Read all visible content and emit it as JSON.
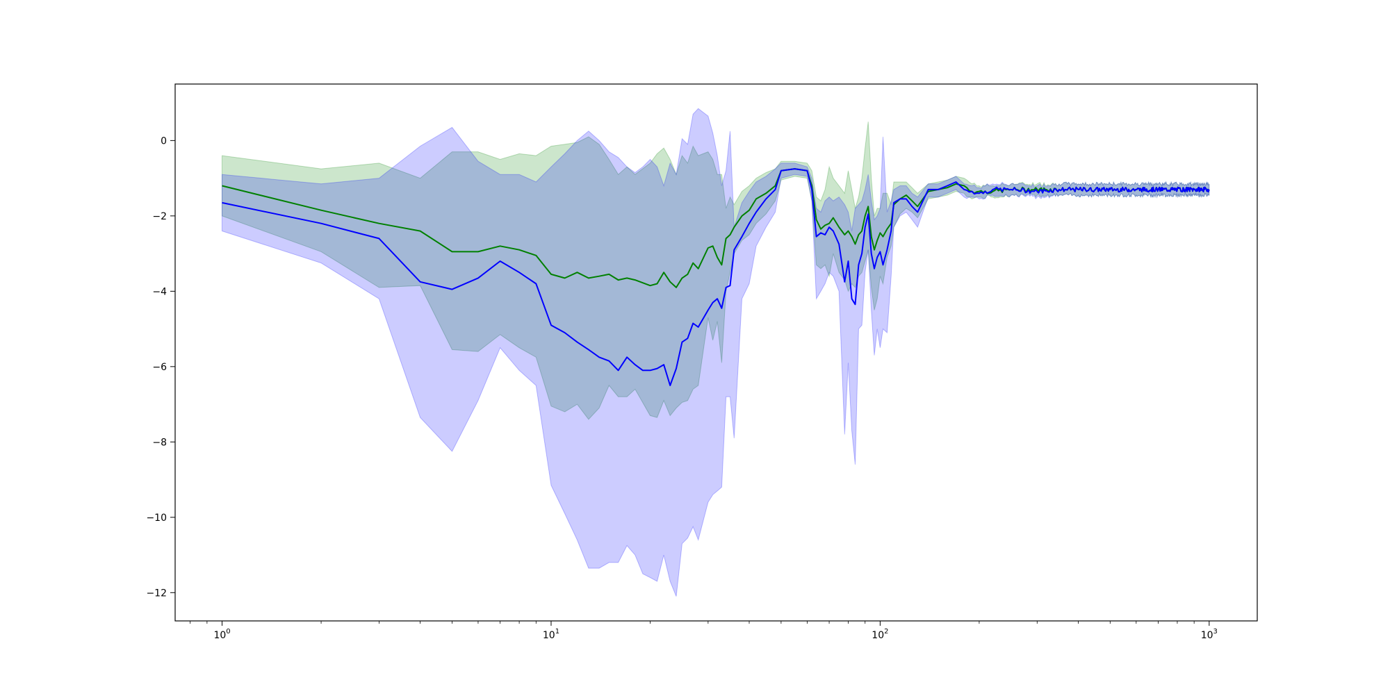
{
  "chart_data": {
    "type": "line",
    "title": "",
    "xlabel": "",
    "ylabel": "",
    "xscale": "log",
    "xlim": [
      0.72,
      1400
    ],
    "ylim": [
      -12.75,
      1.5
    ],
    "grid": false,
    "x_ticks": [
      {
        "value": 1,
        "base": "10",
        "exp": "0"
      },
      {
        "value": 10,
        "base": "10",
        "exp": "1"
      },
      {
        "value": 100,
        "base": "10",
        "exp": "2"
      },
      {
        "value": 1000,
        "base": "10",
        "exp": "3"
      }
    ],
    "y_ticks": [
      {
        "value": 0,
        "label": "0"
      },
      {
        "value": -2,
        "label": "−2"
      },
      {
        "value": -4,
        "label": "−4"
      },
      {
        "value": -6,
        "label": "−6"
      },
      {
        "value": -8,
        "label": "−8"
      },
      {
        "value": -10,
        "label": "−10"
      },
      {
        "value": -12,
        "label": "−12"
      }
    ],
    "series": [
      {
        "color": "#008000",
        "band_color": "#008000",
        "band_opacity": 0.2,
        "x": [
          1,
          2,
          3,
          4,
          5,
          6,
          7,
          8,
          9,
          10,
          11,
          12,
          13,
          14,
          15,
          16,
          17,
          18,
          20,
          21,
          22,
          23,
          24,
          25,
          26,
          27,
          28,
          30,
          31,
          32,
          33,
          34,
          35,
          36,
          38,
          40,
          42,
          45,
          48,
          50,
          55,
          60,
          62,
          64,
          66,
          68,
          70,
          72,
          75,
          78,
          80,
          82,
          84,
          86,
          88,
          90,
          92,
          94,
          96,
          98,
          100,
          102,
          105,
          108,
          110,
          115,
          120,
          125,
          130,
          140,
          150,
          160,
          170,
          180,
          190,
          200,
          220,
          250,
          300,
          350,
          400,
          500,
          600,
          700,
          800,
          900,
          1000
        ],
        "y": [
          -1.2,
          -1.85,
          -2.2,
          -2.4,
          -2.95,
          -2.95,
          -2.8,
          -2.9,
          -3.05,
          -3.55,
          -3.65,
          -3.5,
          -3.65,
          -3.6,
          -3.55,
          -3.7,
          -3.65,
          -3.7,
          -3.85,
          -3.8,
          -3.5,
          -3.75,
          -3.9,
          -3.65,
          -3.55,
          -3.25,
          -3.4,
          -2.85,
          -2.8,
          -3.1,
          -3.3,
          -2.6,
          -2.5,
          -2.3,
          -2.0,
          -1.85,
          -1.55,
          -1.4,
          -1.2,
          -0.8,
          -0.75,
          -0.8,
          -1.2,
          -2.1,
          -2.35,
          -2.25,
          -2.2,
          -2.05,
          -2.3,
          -2.5,
          -2.4,
          -2.55,
          -2.75,
          -2.5,
          -2.4,
          -2.0,
          -1.75,
          -2.55,
          -2.9,
          -2.65,
          -2.45,
          -2.55,
          -2.35,
          -2.2,
          -1.7,
          -1.55,
          -1.45,
          -1.6,
          -1.75,
          -1.35,
          -1.3,
          -1.25,
          -1.15,
          -1.2,
          -1.35,
          -1.35,
          -1.35,
          -1.3,
          -1.3,
          -1.3,
          -1.3,
          -1.3,
          -1.3,
          -1.3,
          -1.3,
          -1.3,
          -1.3
        ],
        "upper": [
          -0.4,
          -0.75,
          -0.6,
          -1.0,
          -0.3,
          -0.3,
          -0.5,
          -0.35,
          -0.4,
          -0.15,
          -0.1,
          -0.05,
          0.1,
          -0.1,
          -0.5,
          -0.9,
          -0.7,
          -0.9,
          -0.6,
          -0.35,
          -0.2,
          -0.5,
          -0.9,
          -0.4,
          -0.6,
          -0.15,
          -0.4,
          -0.3,
          -0.5,
          -0.9,
          -0.9,
          -1.8,
          -1.5,
          -1.7,
          -1.35,
          -1.2,
          -1.0,
          -0.85,
          -0.75,
          -0.55,
          -0.55,
          -0.6,
          -0.8,
          -1.5,
          -1.6,
          -1.3,
          -0.7,
          -1.0,
          -1.2,
          -1.4,
          -0.8,
          -1.3,
          -1.8,
          -1.5,
          -1.0,
          -0.2,
          0.5,
          -1.0,
          -2.0,
          -1.8,
          -1.8,
          -1.4,
          -1.4,
          -1.7,
          -1.1,
          -1.1,
          -1.1,
          -1.25,
          -1.4,
          -1.15,
          -1.1,
          -1.05,
          -0.95,
          -1.0,
          -1.15,
          -1.2,
          -1.2,
          -1.15,
          -1.15,
          -1.15,
          -1.15,
          -1.15,
          -1.15,
          -1.15,
          -1.15,
          -1.15,
          -1.15
        ],
        "lower": [
          -2.0,
          -2.95,
          -3.9,
          -3.85,
          -5.55,
          -5.6,
          -5.15,
          -5.5,
          -5.75,
          -7.05,
          -7.2,
          -7.0,
          -7.4,
          -7.1,
          -6.5,
          -6.8,
          -6.8,
          -6.6,
          -7.3,
          -7.35,
          -6.9,
          -7.3,
          -7.1,
          -6.95,
          -6.9,
          -6.6,
          -6.5,
          -4.7,
          -5.3,
          -4.8,
          -5.9,
          -4.0,
          -3.5,
          -3.0,
          -2.65,
          -2.5,
          -2.2,
          -1.95,
          -1.6,
          -1.05,
          -0.95,
          -1.0,
          -1.6,
          -3.3,
          -3.4,
          -3.3,
          -3.6,
          -3.0,
          -3.5,
          -3.7,
          -4.0,
          -3.8,
          -3.9,
          -3.6,
          -3.5,
          -3.2,
          -2.9,
          -3.9,
          -4.5,
          -4.2,
          -3.6,
          -3.8,
          -3.1,
          -2.8,
          -2.3,
          -1.95,
          -1.8,
          -1.9,
          -2.05,
          -1.55,
          -1.5,
          -1.45,
          -1.35,
          -1.4,
          -1.55,
          -1.5,
          -1.5,
          -1.45,
          -1.45,
          -1.45,
          -1.45,
          -1.45,
          -1.45,
          -1.45,
          -1.45,
          -1.45,
          -1.45
        ]
      },
      {
        "color": "#0000ff",
        "band_color": "#0000ff",
        "band_opacity": 0.2,
        "x": [
          1,
          2,
          3,
          4,
          5,
          6,
          7,
          8,
          9,
          10,
          11,
          12,
          13,
          14,
          15,
          16,
          17,
          18,
          19,
          20,
          21,
          22,
          23,
          24,
          25,
          26,
          27,
          28,
          30,
          31,
          32,
          33,
          34,
          35,
          36,
          38,
          40,
          42,
          45,
          48,
          50,
          55,
          60,
          62,
          64,
          66,
          68,
          70,
          72,
          75,
          78,
          80,
          82,
          84,
          86,
          88,
          90,
          92,
          94,
          96,
          98,
          100,
          102,
          105,
          108,
          110,
          115,
          120,
          125,
          130,
          140,
          150,
          160,
          170,
          180,
          190,
          200,
          220,
          250,
          300,
          350,
          400,
          500,
          600,
          700,
          800,
          900,
          1000
        ],
        "y": [
          -1.65,
          -2.2,
          -2.6,
          -3.75,
          -3.95,
          -3.65,
          -3.2,
          -3.5,
          -3.8,
          -4.9,
          -5.1,
          -5.35,
          -5.55,
          -5.75,
          -5.85,
          -6.1,
          -5.75,
          -5.95,
          -6.1,
          -6.1,
          -6.05,
          -5.95,
          -6.5,
          -6.05,
          -5.35,
          -5.25,
          -4.85,
          -4.95,
          -4.5,
          -4.3,
          -4.2,
          -4.45,
          -3.9,
          -3.85,
          -2.9,
          -2.55,
          -2.2,
          -1.9,
          -1.55,
          -1.3,
          -0.8,
          -0.75,
          -0.8,
          -1.3,
          -2.55,
          -2.45,
          -2.5,
          -2.3,
          -2.4,
          -2.75,
          -3.75,
          -3.2,
          -4.2,
          -4.35,
          -3.3,
          -3.0,
          -2.3,
          -1.95,
          -3.0,
          -3.4,
          -3.1,
          -2.95,
          -3.3,
          -2.9,
          -2.4,
          -1.65,
          -1.55,
          -1.55,
          -1.75,
          -1.9,
          -1.3,
          -1.3,
          -1.2,
          -1.1,
          -1.3,
          -1.35,
          -1.4,
          -1.3,
          -1.3,
          -1.35,
          -1.3,
          -1.3,
          -1.3,
          -1.3,
          -1.3,
          -1.3,
          -1.3,
          -1.3
        ],
        "upper": [
          -0.9,
          -1.15,
          -1.0,
          -0.15,
          0.35,
          -0.55,
          -0.9,
          -0.9,
          -1.1,
          -0.7,
          -0.35,
          0.0,
          0.25,
          0.0,
          -0.3,
          -0.45,
          -0.7,
          -0.85,
          -0.7,
          -0.5,
          -0.7,
          -1.2,
          -0.6,
          -0.9,
          0.05,
          -0.1,
          0.7,
          0.85,
          0.65,
          0.2,
          -0.4,
          -1.2,
          -0.8,
          0.25,
          -2.3,
          -1.65,
          -1.35,
          -1.1,
          -0.95,
          -0.75,
          -0.6,
          -0.6,
          -0.7,
          -1.0,
          -1.8,
          -1.9,
          -1.6,
          -1.5,
          -1.6,
          -1.5,
          -1.7,
          -1.9,
          -2.4,
          -1.8,
          -1.7,
          -1.6,
          -1.3,
          -0.9,
          -1.6,
          -2.1,
          -2.0,
          -1.8,
          0.1,
          -1.9,
          -1.6,
          -1.3,
          -1.2,
          -1.2,
          -1.4,
          -1.5,
          -1.15,
          -1.15,
          -1.05,
          -0.95,
          -1.15,
          -1.2,
          -1.25,
          -1.15,
          -1.15,
          -1.2,
          -1.15,
          -1.15,
          -1.15,
          -1.15,
          -1.15,
          -1.15,
          -1.15,
          -1.15
        ],
        "lower": [
          -2.4,
          -3.25,
          -4.2,
          -7.35,
          -8.25,
          -6.9,
          -5.5,
          -6.1,
          -6.5,
          -9.15,
          -9.9,
          -10.6,
          -11.35,
          -11.35,
          -11.2,
          -11.2,
          -10.75,
          -11.0,
          -11.5,
          -11.6,
          -11.7,
          -11.0,
          -11.7,
          -12.1,
          -10.7,
          -10.55,
          -10.25,
          -10.6,
          -9.6,
          -9.4,
          -9.3,
          -9.2,
          -6.8,
          -6.8,
          -7.9,
          -4.2,
          -3.8,
          -2.8,
          -2.3,
          -1.9,
          -1.0,
          -0.9,
          -0.95,
          -1.6,
          -4.2,
          -4.0,
          -3.8,
          -3.5,
          -3.6,
          -4.0,
          -7.8,
          -5.9,
          -7.7,
          -8.6,
          -5.0,
          -4.9,
          -3.5,
          -2.9,
          -4.5,
          -5.7,
          -5.0,
          -5.5,
          -5.0,
          -5.1,
          -3.6,
          -2.3,
          -2.0,
          -1.9,
          -2.1,
          -2.3,
          -1.5,
          -1.5,
          -1.4,
          -1.3,
          -1.5,
          -1.5,
          -1.55,
          -1.45,
          -1.45,
          -1.5,
          -1.45,
          -1.45,
          -1.45,
          -1.45,
          -1.45,
          -1.45,
          -1.45,
          -1.45
        ]
      }
    ]
  }
}
